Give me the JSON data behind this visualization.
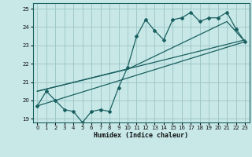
{
  "title": "",
  "xlabel": "Humidex (Indice chaleur)",
  "ylabel": "",
  "bg_color": "#c8e8e8",
  "grid_color": "#a0c8c8",
  "line_color": "#1a6060",
  "xlim": [
    -0.5,
    23.5
  ],
  "ylim": [
    18.8,
    25.3
  ],
  "xticks": [
    0,
    1,
    2,
    3,
    4,
    5,
    6,
    7,
    8,
    9,
    10,
    11,
    12,
    13,
    14,
    15,
    16,
    17,
    18,
    19,
    20,
    21,
    22,
    23
  ],
  "yticks": [
    19,
    20,
    21,
    22,
    23,
    24,
    25
  ],
  "main_x": [
    0,
    1,
    2,
    3,
    4,
    5,
    6,
    7,
    8,
    9,
    10,
    11,
    12,
    13,
    14,
    15,
    16,
    17,
    18,
    19,
    20,
    21,
    22,
    23
  ],
  "main_y": [
    19.7,
    20.5,
    20.0,
    19.5,
    19.4,
    18.8,
    19.4,
    19.5,
    19.4,
    20.7,
    21.8,
    23.5,
    24.4,
    23.8,
    23.3,
    24.4,
    24.5,
    24.8,
    24.3,
    24.5,
    24.5,
    24.8,
    23.9,
    23.2
  ],
  "line1_x": [
    0,
    23
  ],
  "line1_y": [
    20.5,
    23.3
  ],
  "line2_x": [
    0,
    10,
    21,
    23
  ],
  "line2_y": [
    20.5,
    21.7,
    24.3,
    23.2
  ],
  "line3_x": [
    0,
    23
  ],
  "line3_y": [
    19.7,
    23.2
  ]
}
